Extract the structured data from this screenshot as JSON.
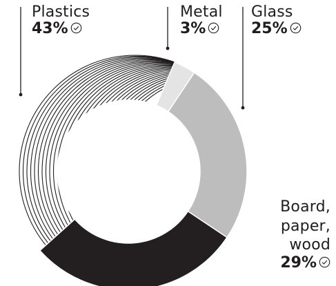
{
  "chart_data": {
    "type": "donut",
    "title": "",
    "slices": [
      {
        "name": "Plastics",
        "value": 43,
        "label": "43%",
        "style": "hatched",
        "color": "#1f1d1d"
      },
      {
        "name": "Metal",
        "value": 3,
        "label": "3%",
        "style": "solid",
        "color": "#e4e4e4"
      },
      {
        "name": "Glass",
        "value": 25,
        "label": "25%",
        "style": "solid",
        "color": "#bdbdbd"
      },
      {
        "name": "Board,\npaper,\nwood",
        "value": 29,
        "label": "29%",
        "style": "solid",
        "color": "#231f20"
      }
    ],
    "legend": "callouts",
    "icon": "check-circle-icon"
  }
}
